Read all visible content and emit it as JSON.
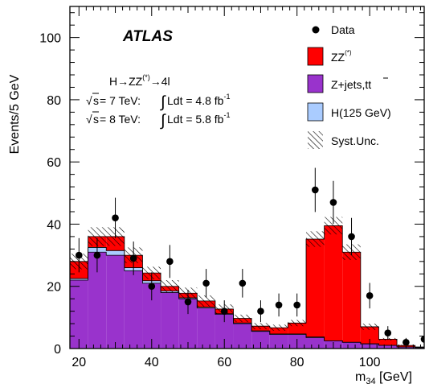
{
  "chart_data": {
    "type": "bar",
    "x_label": "m",
    "x_label_sub": "34",
    "x_label_unit": " [GeV]",
    "y_label": "Events/5 GeV",
    "xlim": [
      17.5,
      115
    ],
    "ylim": [
      0,
      110
    ],
    "x_ticks": [
      20,
      40,
      60,
      80,
      100
    ],
    "y_ticks": [
      0,
      20,
      40,
      60,
      80,
      100
    ],
    "experiment": "ATLAS",
    "process": "H→ZZ(*)→4l",
    "process_parts": {
      "pre": "H→ZZ",
      "sup": "(*)",
      "post": "→4l"
    },
    "lumi_lines": [
      {
        "sqrt": "s",
        "energy": " = 7 TeV:",
        "int": "Ldt = 4.8 fb",
        "sup": "-1"
      },
      {
        "sqrt": "s",
        "energy": " = 8 TeV:",
        "int": "Ldt = 5.8 fb",
        "sup": "-1"
      }
    ],
    "legend": [
      {
        "key": "data",
        "label": "Data",
        "sup": ""
      },
      {
        "key": "zz",
        "label": "ZZ",
        "sup": "(*)"
      },
      {
        "key": "zjets",
        "label": "Z+jets,t",
        "sup": ""
      },
      {
        "key": "higgs",
        "label": "H(125 GeV)",
        "sup": ""
      },
      {
        "key": "syst",
        "label": "Syst.Unc.",
        "sup": ""
      }
    ],
    "colors": {
      "zz": "#ff0000",
      "zjets": "#9933cc",
      "higgs": "#aaccff",
      "data": "#000000",
      "frame": "#000000"
    },
    "bin_edges": [
      17.5,
      22.5,
      27.5,
      32.5,
      37.5,
      42.5,
      47.5,
      52.5,
      57.5,
      62.5,
      67.5,
      72.5,
      77.5,
      82.5,
      87.5,
      92.5,
      97.5,
      102.5,
      107.5,
      112.5,
      117.5
    ],
    "series": [
      {
        "key": "zjets",
        "name": "Z+jets,tt̄",
        "values": [
          22,
          31,
          30,
          25,
          21,
          18,
          16,
          13,
          11,
          8,
          5.5,
          4.5,
          4.5,
          3.5,
          2.5,
          2,
          1.5,
          1,
          0.5,
          0.3
        ]
      },
      {
        "key": "higgs",
        "name": "H(125 GeV)",
        "values": [
          0.5,
          1.5,
          1.5,
          1,
          0.8,
          0.5,
          0.3,
          0.3,
          0.2,
          0.2,
          0.2,
          0.2,
          0.2,
          0.2,
          0,
          0,
          0,
          0,
          0,
          0
        ]
      },
      {
        "key": "zz",
        "name": "ZZ(*)",
        "values": [
          5.5,
          3.5,
          4.5,
          4,
          2.5,
          1.5,
          1.5,
          2,
          1.5,
          1.5,
          1.5,
          2,
          3.5,
          31.5,
          37,
          29,
          5.5,
          2,
          0.5,
          0.2
        ]
      }
    ],
    "syst_half_width": [
      2.5,
      3,
      3,
      2.5,
      2,
      2,
      1.8,
      1.8,
      1.5,
      1.2,
      1,
      1,
      1,
      2.5,
      2.8,
      2.5,
      1,
      0.4,
      0.2,
      0.1
    ],
    "data_points": {
      "x": [
        20,
        25,
        30,
        35,
        40,
        45,
        50,
        55,
        60,
        65,
        70,
        75,
        80,
        85,
        90,
        95,
        100,
        105,
        110,
        115
      ],
      "y": [
        30,
        30,
        42,
        29,
        20,
        28,
        15,
        21,
        12,
        21,
        12,
        14,
        14,
        51,
        47,
        36,
        17,
        5,
        2,
        3
      ],
      "err": [
        5.5,
        5.5,
        6.5,
        5.4,
        4.5,
        5.3,
        3.9,
        4.6,
        3.5,
        4.6,
        3.5,
        3.7,
        3.7,
        7.1,
        6.9,
        6,
        4.1,
        2.2,
        1.4,
        1.7
      ]
    }
  }
}
